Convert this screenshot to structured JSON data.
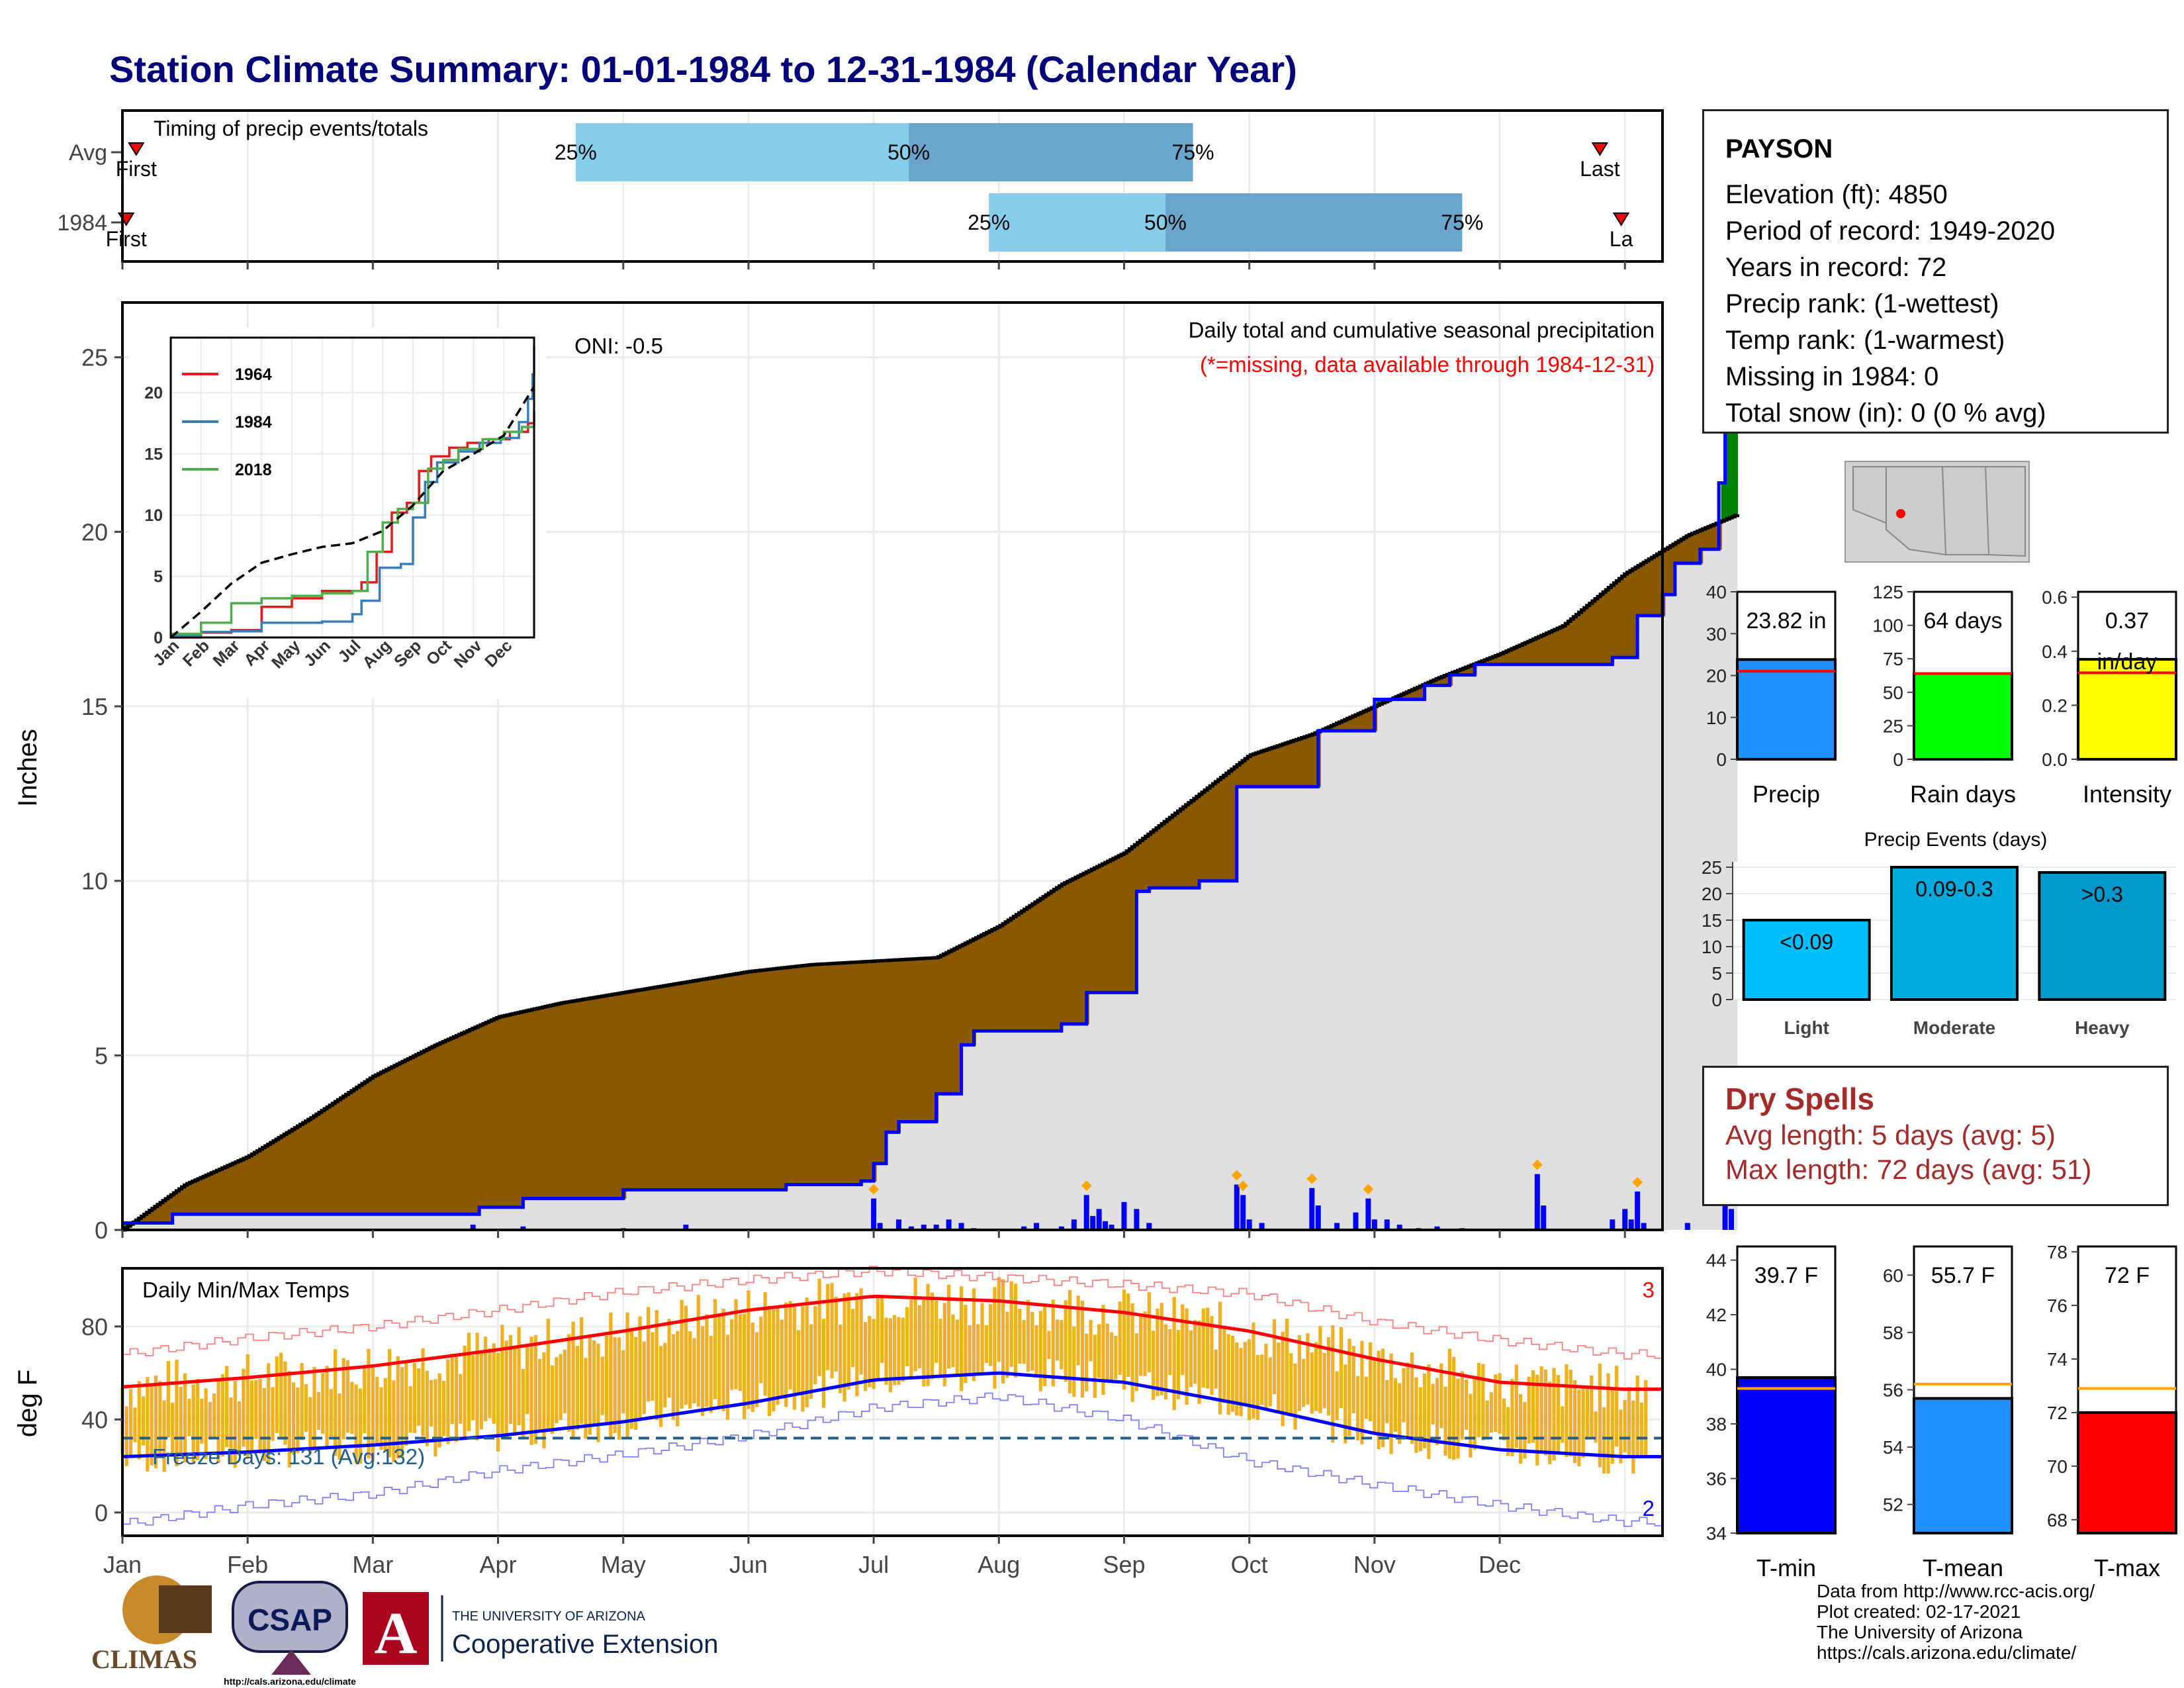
{
  "title": "Station Climate Summary: 01-01-1984 to 12-31-1984 (Calendar Year)",
  "colors": {
    "title": "#00007a",
    "observed": "#0000ff",
    "avg": "#000000",
    "deficit": "#8b5a00",
    "surplus": "#008000",
    "normal_fill": "#e0e0e0",
    "tmax": "#ff0000",
    "tmin": "#0000ff",
    "temp_bar": "#f0b020",
    "precip_bar": "#1e90ff",
    "raindays_bar": "#00ff00",
    "intensity_bar": "#ffff00"
  },
  "timing": {
    "label": "Timing of precip events/totals",
    "rows": [
      {
        "name": "Avg",
        "first_label": "First",
        "last_label": "Last",
        "q25": "25%",
        "q50": "50%",
        "q75": "75%",
        "first": 0.11,
        "last": 11.8,
        "p25": 3.62,
        "p50": 6.28,
        "p75": 8.55
      },
      {
        "name": "1984",
        "first_label": "First",
        "last_label": "La",
        "q25": "25%",
        "q50": "50%",
        "q75": "75%",
        "first": 0.03,
        "last": 11.97,
        "p25": 6.92,
        "p50": 8.33,
        "p75": 10.7
      }
    ]
  },
  "precip": {
    "ylabel": "Inches",
    "title": "Daily total and cumulative seasonal precipitation",
    "subtitle": "(*=missing, data available through 1984-12-31)",
    "oni": "ONI: -0.5",
    "yticks": [
      "0",
      "5",
      "10",
      "15",
      "20",
      "25"
    ],
    "ylim": [
      0,
      26
    ],
    "avg_cum": [
      [
        0,
        0
      ],
      [
        0.5,
        1.3
      ],
      [
        1,
        2.1
      ],
      [
        1.5,
        3.2
      ],
      [
        2,
        4.4
      ],
      [
        2.5,
        5.3
      ],
      [
        3,
        6.1
      ],
      [
        3.5,
        6.5
      ],
      [
        4,
        6.8
      ],
      [
        4.5,
        7.1
      ],
      [
        5,
        7.4
      ],
      [
        5.5,
        7.6
      ],
      [
        6,
        7.7
      ],
      [
        6.5,
        7.8
      ],
      [
        7,
        8.7
      ],
      [
        7.5,
        9.9
      ],
      [
        8,
        10.8
      ],
      [
        8.5,
        12.2
      ],
      [
        9,
        13.6
      ],
      [
        9.5,
        14.2
      ],
      [
        10,
        15.0
      ],
      [
        10.5,
        15.8
      ],
      [
        11,
        16.5
      ],
      [
        11.5,
        17.3
      ],
      [
        12,
        18.8
      ],
      [
        12.5,
        19.9
      ],
      [
        12.9,
        20.5
      ]
    ],
    "obs_cum": [
      [
        0,
        0.2
      ],
      [
        0.05,
        0.2
      ],
      [
        0.4,
        0.45
      ],
      [
        0.5,
        0.45
      ],
      [
        1,
        0.45
      ],
      [
        2,
        0.45
      ],
      [
        2.8,
        0.45
      ],
      [
        2.85,
        0.65
      ],
      [
        3.0,
        0.65
      ],
      [
        3.2,
        0.9
      ],
      [
        3.8,
        0.9
      ],
      [
        4,
        1.15
      ],
      [
        5,
        1.15
      ],
      [
        5.3,
        1.3
      ],
      [
        5.9,
        1.4
      ],
      [
        6.0,
        1.9
      ],
      [
        6.1,
        2.8
      ],
      [
        6.2,
        3.1
      ],
      [
        6.5,
        3.9
      ],
      [
        6.7,
        5.3
      ],
      [
        6.8,
        5.7
      ],
      [
        7.0,
        5.7
      ],
      [
        7.5,
        5.9
      ],
      [
        7.7,
        6.8
      ],
      [
        8.1,
        9.7
      ],
      [
        8.2,
        9.8
      ],
      [
        8.6,
        10.0
      ],
      [
        8.9,
        12.7
      ],
      [
        9.5,
        12.7
      ],
      [
        9.55,
        14.3
      ],
      [
        9.9,
        14.3
      ],
      [
        10.0,
        15.2
      ],
      [
        10.4,
        15.6
      ],
      [
        10.6,
        15.9
      ],
      [
        10.8,
        16.2
      ],
      [
        11.3,
        16.2
      ],
      [
        11.9,
        16.4
      ],
      [
        12.1,
        17.6
      ],
      [
        12.3,
        18.2
      ],
      [
        12.4,
        19.1
      ],
      [
        12.6,
        19.5
      ],
      [
        12.75,
        21.4
      ],
      [
        12.8,
        23.8
      ],
      [
        12.9,
        23.8
      ]
    ],
    "daily_bars": [
      [
        2.8,
        0.15
      ],
      [
        3.2,
        0.1
      ],
      [
        4.0,
        0.05
      ],
      [
        4.5,
        0.15
      ],
      [
        6.0,
        0.9
      ],
      [
        6.05,
        0.2
      ],
      [
        6.2,
        0.3
      ],
      [
        6.3,
        0.1
      ],
      [
        6.4,
        0.15
      ],
      [
        6.5,
        0.15
      ],
      [
        6.6,
        0.3
      ],
      [
        6.7,
        0.2
      ],
      [
        6.8,
        0.05
      ],
      [
        7.2,
        0.1
      ],
      [
        7.3,
        0.2
      ],
      [
        7.5,
        0.1
      ],
      [
        7.6,
        0.3
      ],
      [
        7.7,
        1.0
      ],
      [
        7.75,
        0.4
      ],
      [
        7.8,
        0.6
      ],
      [
        7.85,
        0.25
      ],
      [
        7.9,
        0.15
      ],
      [
        8.0,
        0.8
      ],
      [
        8.1,
        0.6
      ],
      [
        8.2,
        0.2
      ],
      [
        8.9,
        1.3
      ],
      [
        8.95,
        1.0
      ],
      [
        9.0,
        0.3
      ],
      [
        9.1,
        0.2
      ],
      [
        9.5,
        1.2
      ],
      [
        9.55,
        0.7
      ],
      [
        9.7,
        0.2
      ],
      [
        9.85,
        0.5
      ],
      [
        9.95,
        0.9
      ],
      [
        10.0,
        0.3
      ],
      [
        10.1,
        0.3
      ],
      [
        10.2,
        0.15
      ],
      [
        10.35,
        0.05
      ],
      [
        10.5,
        0.1
      ],
      [
        10.7,
        0.05
      ],
      [
        11.3,
        1.6
      ],
      [
        11.35,
        0.7
      ],
      [
        11.9,
        0.3
      ],
      [
        12.0,
        0.6
      ],
      [
        12.05,
        0.3
      ],
      [
        12.1,
        1.1
      ],
      [
        12.15,
        0.2
      ],
      [
        12.5,
        0.2
      ],
      [
        12.8,
        1.3
      ],
      [
        12.85,
        0.6
      ]
    ],
    "xmonths": [
      "Jan",
      "Feb",
      "Mar",
      "Apr",
      "May",
      "Jun",
      "Jul",
      "Aug",
      "Sep",
      "Oct",
      "Nov",
      "Dec"
    ]
  },
  "inset": {
    "yticks": [
      "0",
      "5",
      "10",
      "15",
      "20"
    ],
    "xmonths": [
      "Jan",
      "Feb",
      "Mar",
      "Apr",
      "May",
      "Jun",
      "Jul",
      "Aug",
      "Sep",
      "Oct",
      "Nov",
      "Dec"
    ],
    "series": [
      {
        "name": "1964",
        "color": "#e41a1c",
        "values": [
          [
            0,
            0
          ],
          [
            1,
            0.4
          ],
          [
            2,
            0.6
          ],
          [
            3,
            2.5
          ],
          [
            4,
            3.2
          ],
          [
            5,
            3.8
          ],
          [
            6,
            3.8
          ],
          [
            6.3,
            4.5
          ],
          [
            6.8,
            7.0
          ],
          [
            7.3,
            10.2
          ],
          [
            7.8,
            11.0
          ],
          [
            8.2,
            13.6
          ],
          [
            8.6,
            14.8
          ],
          [
            9.2,
            15.5
          ],
          [
            9.8,
            15.9
          ],
          [
            10.5,
            16.2
          ],
          [
            11.2,
            16.8
          ],
          [
            11.8,
            17.5
          ],
          [
            12,
            18.5
          ]
        ]
      },
      {
        "name": "1984",
        "color": "#377eb8",
        "values": [
          [
            0,
            0.2
          ],
          [
            1,
            0.45
          ],
          [
            2,
            0.5
          ],
          [
            3,
            1.2
          ],
          [
            4,
            1.2
          ],
          [
            5,
            1.3
          ],
          [
            6,
            1.9
          ],
          [
            6.3,
            3.0
          ],
          [
            6.9,
            5.7
          ],
          [
            7.6,
            6.0
          ],
          [
            8.0,
            9.8
          ],
          [
            8.4,
            12.7
          ],
          [
            8.8,
            14.3
          ],
          [
            9.5,
            15.2
          ],
          [
            10.2,
            15.9
          ],
          [
            10.9,
            16.3
          ],
          [
            11.5,
            17.6
          ],
          [
            11.8,
            19.5
          ],
          [
            11.95,
            21.5
          ],
          [
            12,
            23.8
          ]
        ]
      },
      {
        "name": "2018",
        "color": "#4daf4a",
        "values": [
          [
            0,
            0.3
          ],
          [
            1,
            1.2
          ],
          [
            2,
            2.8
          ],
          [
            3,
            3.2
          ],
          [
            4,
            3.4
          ],
          [
            5,
            3.6
          ],
          [
            6,
            3.8
          ],
          [
            6.5,
            7.0
          ],
          [
            7,
            9.4
          ],
          [
            7.5,
            10.5
          ],
          [
            8,
            11.0
          ],
          [
            8.5,
            13.8
          ],
          [
            9,
            14.5
          ],
          [
            9.5,
            15.4
          ],
          [
            10.3,
            16.2
          ],
          [
            11.0,
            16.8
          ],
          [
            11.6,
            17.2
          ],
          [
            12,
            17.7
          ]
        ]
      },
      {
        "name": "",
        "color": "#000000",
        "dash": true,
        "values": [
          [
            0,
            0
          ],
          [
            1,
            2.1
          ],
          [
            2,
            4.4
          ],
          [
            3,
            6.1
          ],
          [
            4,
            6.8
          ],
          [
            5,
            7.4
          ],
          [
            6,
            7.7
          ],
          [
            7,
            8.7
          ],
          [
            8,
            10.8
          ],
          [
            9,
            13.6
          ],
          [
            10,
            15.0
          ],
          [
            11,
            16.5
          ],
          [
            12,
            20.5
          ]
        ]
      }
    ]
  },
  "temps": {
    "ylabel": "deg F",
    "title": "Daily Min/Max Temps",
    "freeze_label": "Freeze Days: 131 (Avg:132)",
    "count_hot": "3",
    "count_cold": "2",
    "yticks": [
      "0",
      "40",
      "80"
    ],
    "ylim": [
      -10,
      105
    ],
    "freeze_line": 32,
    "avg_max": [
      [
        0,
        54
      ],
      [
        1,
        58
      ],
      [
        2,
        63
      ],
      [
        3,
        70
      ],
      [
        4,
        78
      ],
      [
        5,
        87
      ],
      [
        6,
        93
      ],
      [
        7,
        91
      ],
      [
        8,
        86
      ],
      [
        9,
        78
      ],
      [
        10,
        66
      ],
      [
        11,
        56
      ],
      [
        12,
        53
      ]
    ],
    "avg_min": [
      [
        0,
        24
      ],
      [
        1,
        26
      ],
      [
        2,
        29
      ],
      [
        3,
        33
      ],
      [
        4,
        39
      ],
      [
        5,
        47
      ],
      [
        6,
        57
      ],
      [
        7,
        60
      ],
      [
        8,
        56
      ],
      [
        9,
        46
      ],
      [
        10,
        34
      ],
      [
        11,
        27
      ],
      [
        12,
        24
      ]
    ],
    "rec_max": [
      [
        0,
        68
      ],
      [
        1,
        75
      ],
      [
        2,
        80
      ],
      [
        3,
        87
      ],
      [
        4,
        95
      ],
      [
        5,
        100
      ],
      [
        6,
        104
      ],
      [
        7,
        101
      ],
      [
        8,
        98
      ],
      [
        9,
        94
      ],
      [
        10,
        82
      ],
      [
        11,
        74
      ],
      [
        12,
        68
      ]
    ],
    "rec_min": [
      [
        0,
        -5
      ],
      [
        1,
        3
      ],
      [
        2,
        8
      ],
      [
        3,
        18
      ],
      [
        4,
        25
      ],
      [
        5,
        33
      ],
      [
        6,
        45
      ],
      [
        7,
        50
      ],
      [
        8,
        40
      ],
      [
        9,
        22
      ],
      [
        10,
        12
      ],
      [
        11,
        3
      ],
      [
        12,
        -4
      ]
    ]
  },
  "gauges": {
    "precip": {
      "value_label": "23.82 in",
      "label": "Precip",
      "value": 23.82,
      "avg": 21,
      "ymax": 40,
      "yticks": [
        "0",
        "10",
        "20",
        "30",
        "40"
      ]
    },
    "raindays": {
      "value_label": "64 days",
      "label": "Rain days",
      "value": 64,
      "avg": 64,
      "ymax": 125,
      "yticks": [
        "0",
        "25",
        "50",
        "75",
        "100",
        "125"
      ]
    },
    "intensity": {
      "value_label1": "0.37",
      "value_label2": "in/day",
      "label": "Intensity",
      "value": 0.37,
      "avg": 0.32,
      "ymax": 0.62,
      "yticks": [
        "0.0",
        "0.2",
        "0.4",
        "0.6"
      ]
    }
  },
  "events": {
    "title": "Precip Events (days)",
    "yticks": [
      "0",
      "5",
      "10",
      "15",
      "20",
      "25"
    ],
    "bars": [
      {
        "name": "Light",
        "range": "<0.09",
        "value": 15,
        "color": "#00bfff"
      },
      {
        "name": "Moderate",
        "range": "0.09-0.3",
        "value": 25,
        "color": "#00aadd"
      },
      {
        "name": "Heavy",
        "range": ">0.3",
        "value": 24,
        "color": "#0099cc"
      }
    ]
  },
  "temp_gauges": {
    "tmin": {
      "value_label": "39.7 F",
      "label": "T-min",
      "value": 39.7,
      "avg": 39.3,
      "ymin": 34,
      "ymax": 44.5,
      "yticks": [
        "34",
        "36",
        "38",
        "40",
        "42",
        "44"
      ]
    },
    "tmean": {
      "value_label": "55.7 F",
      "label": "T-mean",
      "value": 55.7,
      "avg": 56.2,
      "ymin": 51,
      "ymax": 61,
      "yticks": [
        "52",
        "54",
        "56",
        "58",
        "60"
      ]
    },
    "tmax": {
      "value_label": "72 F",
      "label": "T-max",
      "value": 72,
      "avg": 72.9,
      "ymin": 67.5,
      "ymax": 78.2,
      "yticks": [
        "68",
        "70",
        "72",
        "74",
        "76",
        "78"
      ]
    }
  },
  "station": {
    "name": "PAYSON",
    "lines": [
      "Elevation (ft): 4850",
      "Period of record: 1949-2020",
      "Years in record: 72",
      "Precip rank:  (1-wettest)",
      "Temp rank:  (1-warmest)",
      "Missing in 1984: 0",
      "Total snow (in): 0 (0 % avg)"
    ]
  },
  "dry": {
    "title": "Dry Spells",
    "avg": "Avg length: 5 days (avg: 5)",
    "max": "Max length: 72 days (avg: 51)"
  },
  "credits": [
    "Data from http://www.rcc-acis.org/",
    "Plot created: 02-17-2021",
    "The University of Arizona",
    "https://cals.arizona.edu/climate/"
  ],
  "logos": {
    "climas": "CLIMAS",
    "csap": "CSAP",
    "csap_url": "http://cals.arizona.edu/climate",
    "ua_line1": "THE UNIVERSITY OF ARIZONA",
    "ua_line2": "Cooperative Extension"
  }
}
